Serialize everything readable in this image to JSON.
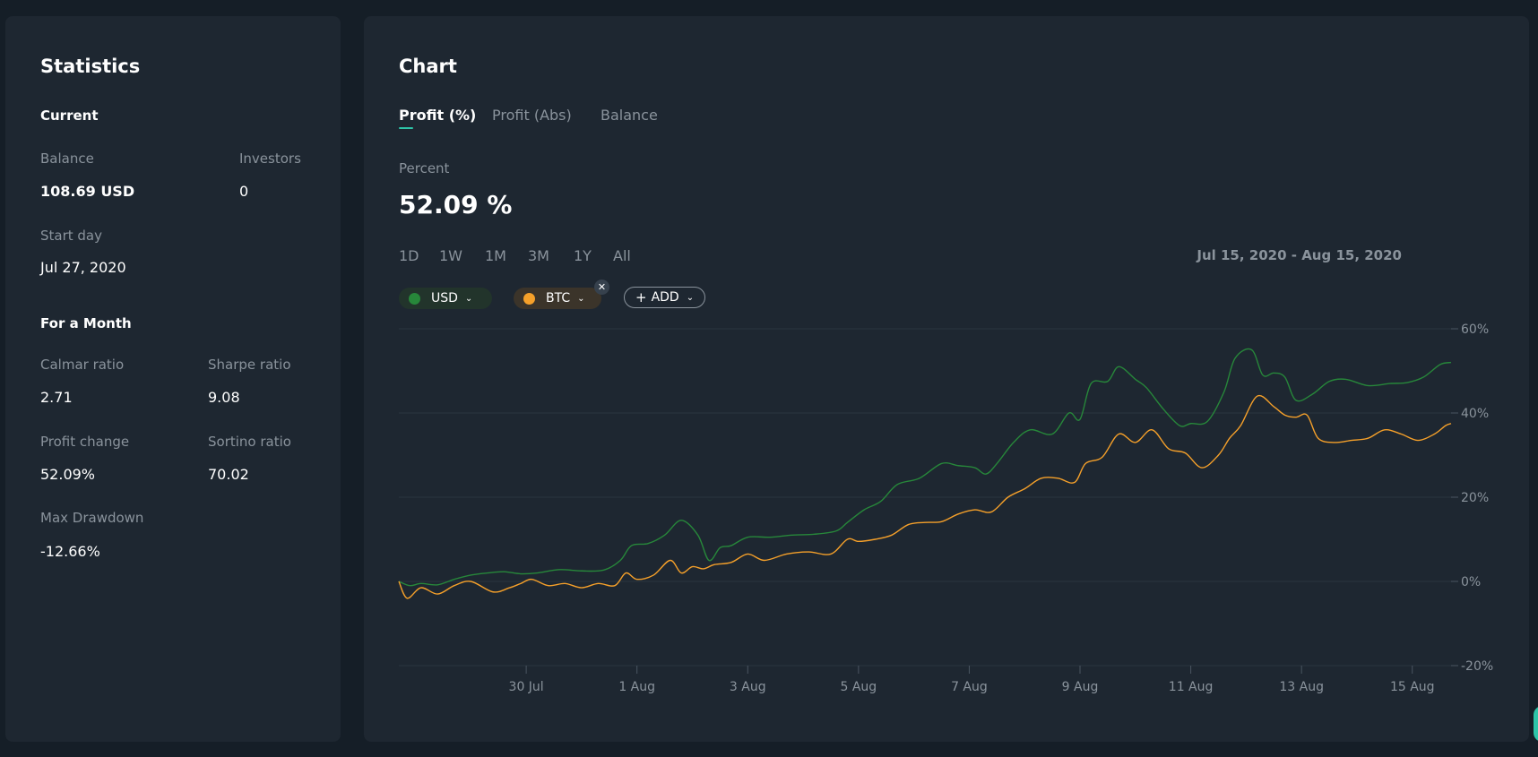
{
  "stats": {
    "title": "Statistics",
    "current_heading": "Current",
    "balance_label": "Balance",
    "balance_value": "108.69 USD",
    "investors_label": "Investors",
    "investors_value": "0",
    "start_day_label": "Start day",
    "start_day_value": "Jul 27, 2020",
    "month_heading": "For a Month",
    "calmar_label": "Calmar ratio",
    "calmar_value": "2.71",
    "sharpe_label": "Sharpe ratio",
    "sharpe_value": "9.08",
    "profit_change_label": "Profit change",
    "profit_change_value": "52.09%",
    "sortino_label": "Sortino ratio",
    "sortino_value": "70.02",
    "max_drawdown_label": "Max Drawdown",
    "max_drawdown_value": "-12.66%"
  },
  "chart_panel": {
    "title": "Chart",
    "tabs": [
      "Profit (%)",
      "Profit (Abs)",
      "Balance"
    ],
    "active_tab": "Profit (%)",
    "metric_label": "Percent",
    "metric_value": "52.09 %",
    "ranges": [
      "1D",
      "1W",
      "1M",
      "3M",
      "1Y",
      "All"
    ],
    "date_range": "Jul 15, 2020 - Aug 15, 2020",
    "chips": {
      "usd_label": "USD",
      "btc_label": "BTC",
      "close_symbol": "✕",
      "add_plus": "+",
      "add_label": "ADD",
      "chevron": "⌄"
    }
  },
  "colors": {
    "background": "#151e27",
    "panel": "#1e2731",
    "usd": "#27873a",
    "btc": "#f5a02a",
    "accent": "#2ec4a8",
    "muted_text": "#8a939c"
  },
  "chart_data": {
    "type": "line",
    "title": "",
    "xlabel": "",
    "ylabel": "",
    "ylim": [
      -20,
      60
    ],
    "y_ticks": [
      "60%",
      "40%",
      "20%",
      "0%",
      "-20%"
    ],
    "y_tick_values": [
      60,
      40,
      20,
      0,
      -20
    ],
    "xlim": [
      0,
      19
    ],
    "x_ticks": [
      "30 Jul",
      "1 Aug",
      "3 Aug",
      "5 Aug",
      "7 Aug",
      "9 Aug",
      "11 Aug",
      "13 Aug",
      "15 Aug"
    ],
    "x_tick_values": [
      2.3,
      4.3,
      6.3,
      8.3,
      10.3,
      12.3,
      14.3,
      16.3,
      18.3
    ],
    "grid": true,
    "legend": "top-left",
    "series": [
      {
        "name": "USD",
        "color": "#27873a",
        "x": [
          0,
          0.2,
          0.4,
          0.7,
          1.0,
          1.3,
          1.6,
          1.9,
          2.2,
          2.5,
          2.9,
          3.3,
          3.7,
          4.0,
          4.2,
          4.5,
          4.8,
          5.1,
          5.4,
          5.6,
          5.8,
          6.0,
          6.3,
          6.7,
          7.1,
          7.5,
          7.9,
          8.1,
          8.4,
          8.7,
          9.0,
          9.4,
          9.8,
          10.1,
          10.4,
          10.6,
          10.8,
          11.1,
          11.4,
          11.8,
          12.1,
          12.3,
          12.5,
          12.8,
          13.0,
          13.3,
          13.5,
          13.8,
          14.1,
          14.3,
          14.6,
          14.9,
          15.1,
          15.4,
          15.6,
          15.8,
          16.0,
          16.2,
          16.5,
          16.8,
          17.1,
          17.5,
          17.9,
          18.2,
          18.5,
          18.8,
          19.0
        ],
        "values": [
          0,
          -1,
          -0.5,
          -0.8,
          0.5,
          1.5,
          2,
          2.3,
          1.8,
          2,
          2.8,
          2.5,
          2.7,
          5,
          8.5,
          9,
          11,
          14.5,
          11,
          5,
          8,
          8.5,
          10.5,
          10.5,
          11,
          11.2,
          12,
          14,
          17,
          19,
          23,
          24.5,
          28,
          27.5,
          27,
          25.5,
          28,
          33,
          36,
          35,
          40,
          38.5,
          47,
          47.5,
          51,
          48,
          46,
          41,
          37,
          37.5,
          38,
          45,
          53,
          55,
          49,
          49.5,
          48.5,
          43,
          44.5,
          47.5,
          48,
          46.5,
          47,
          47.2,
          48.5,
          51.5,
          52
        ]
      },
      {
        "name": "BTC",
        "color": "#f5a02a",
        "x": [
          0,
          0.15,
          0.4,
          0.7,
          1.0,
          1.3,
          1.7,
          2.0,
          2.2,
          2.4,
          2.7,
          3.0,
          3.3,
          3.6,
          3.9,
          4.1,
          4.3,
          4.6,
          4.9,
          5.1,
          5.3,
          5.5,
          5.7,
          6.0,
          6.3,
          6.6,
          7.0,
          7.4,
          7.8,
          8.1,
          8.3,
          8.6,
          8.9,
          9.2,
          9.5,
          9.8,
          10.1,
          10.4,
          10.7,
          11.0,
          11.3,
          11.6,
          11.9,
          12.2,
          12.4,
          12.7,
          13.0,
          13.3,
          13.6,
          13.9,
          14.2,
          14.5,
          14.8,
          15.0,
          15.2,
          15.5,
          15.8,
          16.0,
          16.2,
          16.4,
          16.6,
          16.9,
          17.2,
          17.5,
          17.8,
          18.1,
          18.4,
          18.7,
          18.9,
          19.0
        ],
        "values": [
          0,
          -4,
          -1.5,
          -3,
          -1,
          0,
          -2.5,
          -1.5,
          -0.5,
          0.5,
          -1,
          -0.5,
          -1.5,
          -0.5,
          -1,
          2,
          0.5,
          1.5,
          5,
          2,
          3.5,
          3,
          4,
          4.5,
          6.5,
          5,
          6.5,
          7,
          6.5,
          10,
          9.5,
          10,
          11,
          13.5,
          14,
          14.2,
          16,
          17,
          16.5,
          20,
          22,
          24.5,
          24.5,
          23.5,
          28,
          29.5,
          35,
          33,
          36,
          31.5,
          30.5,
          27,
          30,
          34,
          37,
          44,
          41.5,
          39.5,
          39,
          39.5,
          34,
          33,
          33.5,
          34,
          36,
          35,
          33.5,
          35,
          37,
          37.5
        ]
      }
    ]
  }
}
